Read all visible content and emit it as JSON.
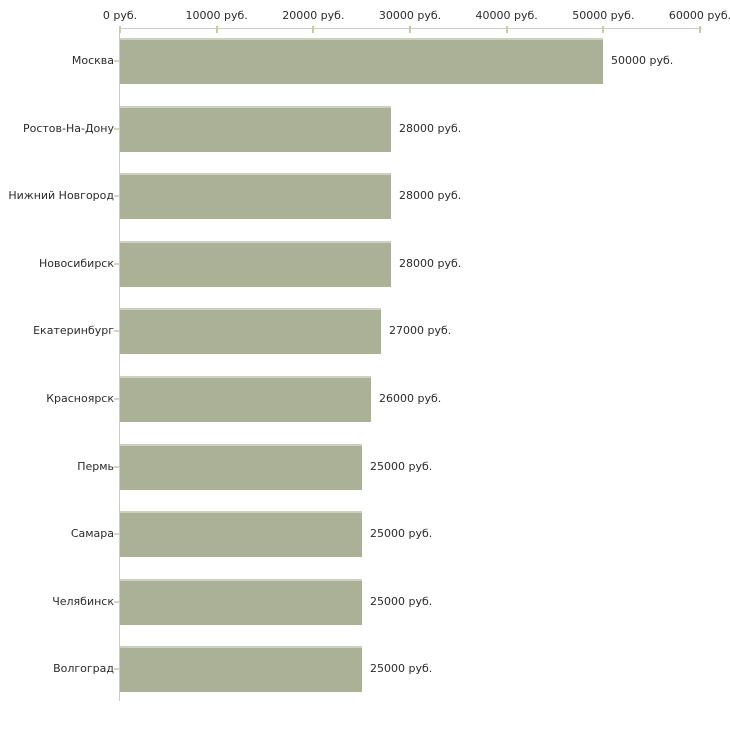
{
  "chart_data": {
    "type": "bar",
    "orientation": "horizontal",
    "title": "",
    "xlabel": "",
    "ylabel": "",
    "unit_suffix": " руб.",
    "categories": [
      "Москва",
      "Ростов-На-Дону",
      "Нижний Новгород",
      "Новосибирск",
      "Екатеринбург",
      "Красноярск",
      "Пермь",
      "Самара",
      "Челябинск",
      "Волгоград"
    ],
    "values": [
      50000,
      28000,
      28000,
      28000,
      27000,
      26000,
      25000,
      25000,
      25000,
      25000
    ],
    "value_labels": [
      "50000 руб.",
      "28000 руб.",
      "28000 руб.",
      "28000 руб.",
      "27000 руб.",
      "26000 руб.",
      "25000 руб.",
      "25000 руб.",
      "25000 руб.",
      "25000 руб."
    ],
    "xlim": [
      0,
      60000
    ],
    "x_ticks": [
      0,
      10000,
      20000,
      30000,
      40000,
      50000,
      60000
    ],
    "x_tick_labels": [
      "0 руб.",
      "10000 руб.",
      "20000 руб.",
      "30000 руб.",
      "40000 руб.",
      "50000 руб.",
      "60000 руб."
    ],
    "grid": false,
    "legend": "none",
    "colors": {
      "bar_fill": "#abb197",
      "bar_border": "#ced1bd",
      "axis_line": "#cbcbcb",
      "x_tick_mark": "#c9cba2",
      "y_tick_mark": "#d5d7bc",
      "text": "#2b2b2b"
    }
  }
}
